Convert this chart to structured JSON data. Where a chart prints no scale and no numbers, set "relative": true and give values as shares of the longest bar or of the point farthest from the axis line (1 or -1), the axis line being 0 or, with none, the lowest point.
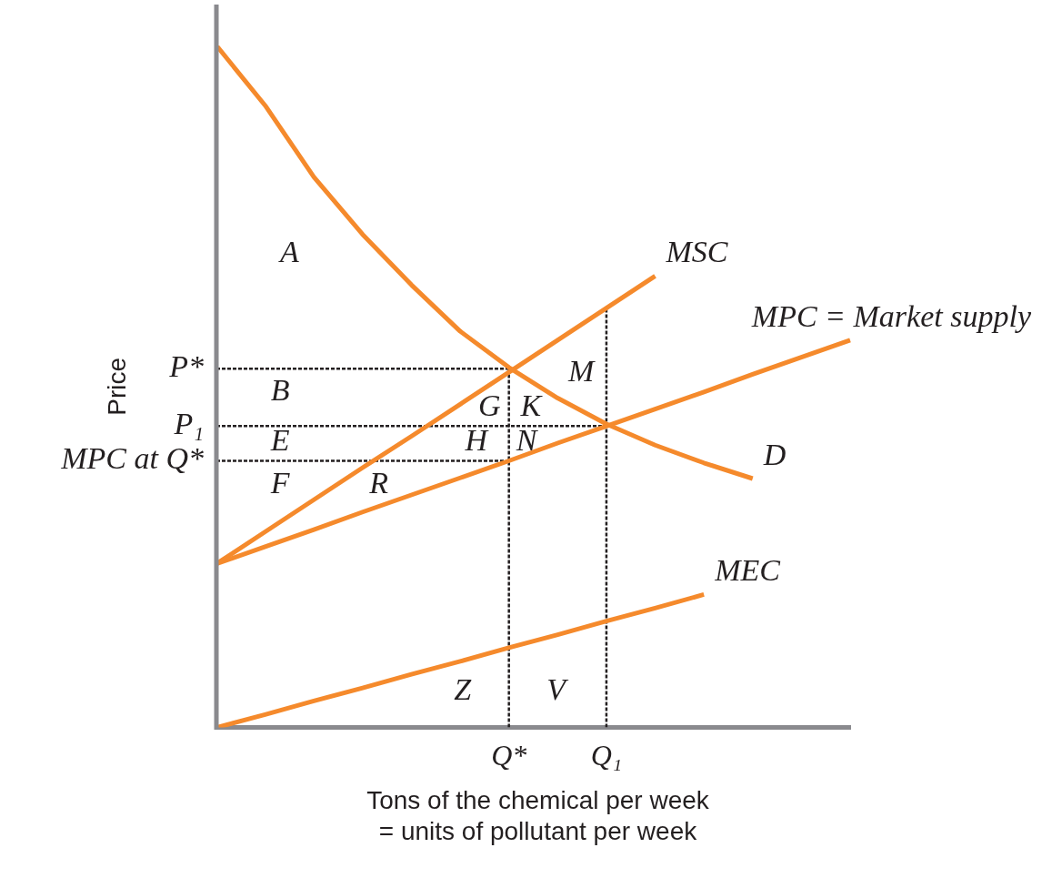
{
  "chart_data": {
    "type": "line",
    "relative": true,
    "xlabel": "Tons of the chemical per week\n= units of pollutant per week",
    "ylabel": "Price",
    "categories": [
      null,
      null,
      null,
      null,
      null,
      null,
      "Q*",
      null,
      "Q₁",
      null,
      null,
      null,
      null,
      null
    ],
    "grid": false,
    "legend": false,
    "marker": "none",
    "line_style": "solid",
    "series": [
      {
        "name": "D",
        "color": "#f58a2c",
        "values": [
          1,
          0.912,
          0.807,
          0.723,
          0.649,
          0.581,
          0.528,
          0.483,
          0.445,
          0.414,
          0.388,
          0.365,
          null,
          null
        ]
      },
      {
        "name": "MSC",
        "color": "#f58a2c",
        "values": [
          0.24,
          0.287,
          0.334,
          0.381,
          0.427,
          0.474,
          0.521,
          0.568,
          0.615,
          0.662,
          null,
          null,
          null,
          null
        ]
      },
      {
        "name": "MPC = Market supply",
        "color": "#f58a2c",
        "values": [
          0.24,
          0.265,
          0.29,
          0.316,
          0.341,
          0.366,
          0.391,
          0.417,
          0.442,
          0.467,
          0.492,
          0.518,
          0.543,
          0.568
        ]
      },
      {
        "name": "MEC",
        "color": "#f58a2c",
        "values": [
          0,
          0.019,
          0.039,
          0.058,
          0.078,
          0.097,
          0.117,
          0.136,
          0.156,
          0.175,
          0.195,
          null,
          null,
          null
        ]
      },
      {
        "color": "#231f20",
        "line_style": "dotted",
        "values": [
          0.526,
          0.526,
          0.526,
          0.526,
          0.526,
          0.526,
          0.526,
          null,
          null,
          null,
          null,
          null,
          null,
          null
        ]
      },
      {
        "color": "#231f20",
        "line_style": "dotted",
        "values": [
          0.442,
          0.442,
          0.442,
          0.442,
          0.442,
          0.442,
          0.442,
          0.442,
          0.442,
          null,
          null,
          null,
          null,
          null
        ]
      },
      {
        "color": "#231f20",
        "line_style": "dotted",
        "values": [
          0.391,
          0.391,
          0.391,
          0.391,
          0.391,
          0.391,
          0.391,
          null,
          null,
          null,
          null,
          null,
          null,
          null
        ]
      },
      {
        "color": "#231f20",
        "line_style": "dotted",
        "x": [
          "Q*",
          "Q*"
        ],
        "values": [
          0,
          0.526
        ]
      },
      {
        "color": "#231f20",
        "line_style": "dotted",
        "x": [
          "Q₁",
          "Q₁"
        ],
        "values": [
          0,
          0.615
        ]
      }
    ],
    "annotations": [
      "P*",
      "P₁",
      "MPC at Q*",
      "A",
      "B",
      "E",
      "F",
      "R",
      "G",
      "K",
      "H",
      "N",
      "M",
      "Z",
      "V"
    ]
  }
}
